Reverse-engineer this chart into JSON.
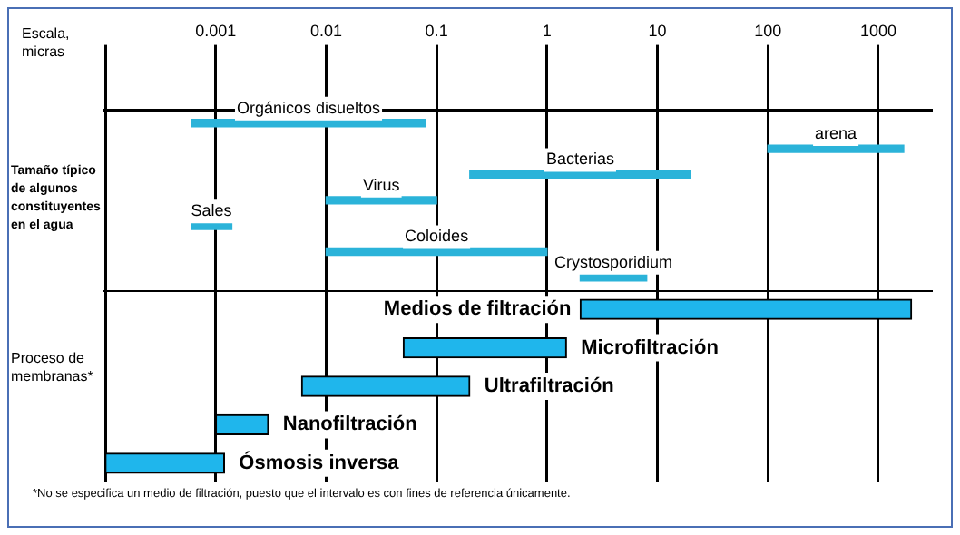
{
  "chart_data": [
    {
      "type": "bar",
      "orientation": "horizontal",
      "xlabel": "Escala, micras",
      "categories": [
        null,
        null,
        null,
        null,
        null,
        null,
        null
      ],
      "log": "x",
      "xlim": [
        0.0001,
        3000
      ],
      "xticks": [
        {
          "value": 0.0001,
          "label": null
        },
        0.001,
        0.01,
        0.1,
        1,
        10,
        100,
        1000
      ],
      "grid": "x",
      "legend": false,
      "annotations": [
        "Tamaño típico de algunos constituyentes en el agua"
      ],
      "base": [
        0.0006,
        100,
        0.2,
        0.01,
        0.0006,
        0.01,
        2
      ],
      "values": [
        0.0794,
        1600,
        19.8,
        0.09,
        0.0008,
        0.99,
        6
      ],
      "color": "#2bb3d9",
      "value_labels": [
        "Orgánicos disueltos",
        "arena",
        "Bacterias",
        "Virus",
        "Sales",
        "Coloides",
        "Crystosporidium"
      ]
    },
    {
      "type": "bar",
      "orientation": "horizontal",
      "categories": [
        null,
        null,
        null,
        null,
        null
      ],
      "log": "x",
      "xlim": [
        0.0001,
        3000
      ],
      "xticks": [
        {
          "value": 0.0001,
          "label": null
        },
        0.001,
        0.01,
        0.1,
        1,
        10,
        100,
        1000
      ],
      "tick_labels": false,
      "grid": "x",
      "legend": false,
      "annotations": [
        "Proceso de membranas*",
        "*No se especifica un medio de filtración, puesto que el intervalo es con fines de referencia únicamente."
      ],
      "base": [
        2,
        0.05,
        0.006,
        0.001,
        0.0001
      ],
      "values": [
        1998,
        1.45,
        0.194,
        0.002,
        0.0011
      ],
      "color": "#1fb6ec",
      "value_labels": [
        "Medios de filtración",
        "Microfiltración",
        "Ultrafiltración",
        "Nanofiltración",
        "Ósmosis inversa"
      ]
    }
  ]
}
